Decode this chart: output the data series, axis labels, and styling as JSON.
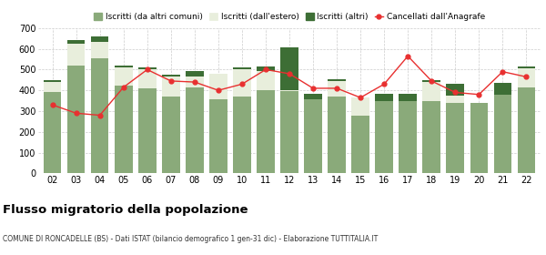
{
  "years": [
    "02",
    "03",
    "04",
    "05",
    "06",
    "07",
    "08",
    "09",
    "10",
    "11",
    "12",
    "13",
    "14",
    "15",
    "16",
    "17",
    "18",
    "19",
    "20",
    "21",
    "22"
  ],
  "iscritti_altri_comuni": [
    390,
    520,
    555,
    425,
    410,
    370,
    415,
    355,
    370,
    400,
    395,
    355,
    370,
    280,
    348,
    350,
    350,
    340,
    340,
    380,
    415
  ],
  "iscritti_estero": [
    50,
    105,
    80,
    85,
    90,
    95,
    50,
    125,
    130,
    95,
    5,
    0,
    75,
    85,
    0,
    0,
    90,
    35,
    0,
    0,
    90
  ],
  "iscritti_altri": [
    10,
    15,
    25,
    10,
    10,
    10,
    30,
    0,
    10,
    20,
    205,
    30,
    10,
    0,
    35,
    35,
    10,
    55,
    0,
    55,
    10
  ],
  "cancellati": [
    330,
    290,
    280,
    415,
    500,
    445,
    440,
    400,
    430,
    500,
    480,
    410,
    410,
    365,
    430,
    565,
    445,
    390,
    380,
    490,
    465
  ],
  "color_altri_comuni": "#8aaa7a",
  "color_estero": "#e8eedc",
  "color_altri": "#3d6e35",
  "color_cancellati": "#e83030",
  "ylim_min": 0,
  "ylim_max": 700,
  "yticks": [
    0,
    100,
    200,
    300,
    400,
    500,
    600,
    700
  ],
  "title": "Flusso migratorio della popolazione",
  "subtitle": "COMUNE DI RONCADELLE (BS) - Dati ISTAT (bilancio demografico 1 gen-31 dic) - Elaborazione TUTTITALIA.IT",
  "legend_labels": [
    "Iscritti (da altri comuni)",
    "Iscritti (dall'estero)",
    "Iscritti (altri)",
    "Cancellati dall'Anagrafe"
  ],
  "background_color": "#ffffff",
  "grid_color": "#cccccc"
}
